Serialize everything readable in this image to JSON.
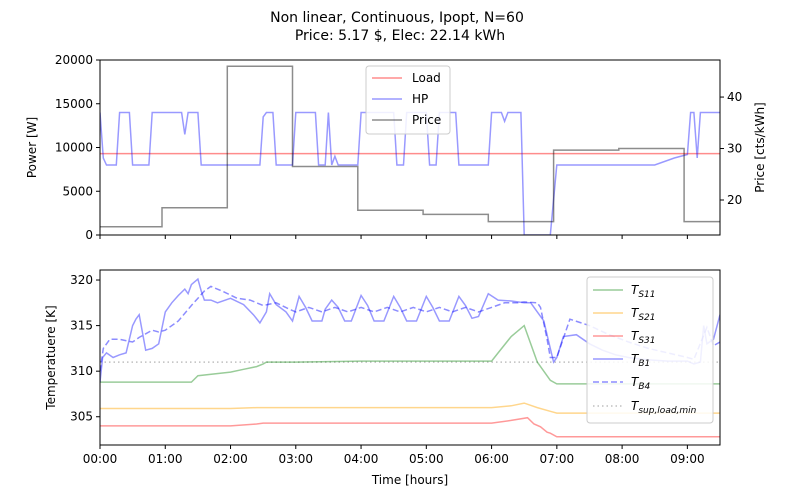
{
  "title_line1": "Non linear, Continuous, Ipopt, N=60",
  "title_line2": "Price: 5.17 $, Elec: 22.14 kWh",
  "colors": {
    "load": "#ff0000",
    "hp": "#0000ff",
    "price": "#000000",
    "ts11": "#008000",
    "ts21": "#ffa500",
    "ts31": "#ff0000",
    "tb1": "#0000ff",
    "tb4": "#0000ff",
    "tsup": "#808080"
  },
  "chart_data": [
    {
      "type": "line",
      "xlabel": "",
      "ylabel": "Power [W]",
      "y2label": "Price [cts/kWh]",
      "xlim": [
        0,
        9.5
      ],
      "ylim": [
        0,
        20000
      ],
      "y2lim": [
        13.2,
        47.2
      ],
      "yticks": [
        "0",
        "5000",
        "10000",
        "15000",
        "20000"
      ],
      "y2ticks": [
        "20",
        "30",
        "40"
      ],
      "legend": [
        "Load",
        "HP",
        "Price"
      ],
      "legend_position": "top-center",
      "series": [
        {
          "name": "Load",
          "x": [
            0,
            9.5
          ],
          "values": [
            9300,
            9300
          ]
        },
        {
          "name": "HP",
          "x": [
            0,
            0.05,
            0.1,
            0.25,
            0.3,
            0.45,
            0.5,
            0.75,
            0.8,
            1.25,
            1.3,
            1.35,
            1.4,
            1.5,
            1.55,
            1.95,
            2.0,
            2.45,
            2.5,
            2.55,
            2.65,
            2.7,
            2.95,
            3.0,
            3.3,
            3.35,
            3.45,
            3.5,
            3.55,
            3.6,
            3.65,
            3.75,
            3.8,
            3.95,
            4.0,
            4.5,
            4.55,
            4.65,
            4.7,
            5.0,
            5.05,
            5.15,
            5.2,
            5.45,
            5.5,
            5.95,
            6.0,
            6.15,
            6.2,
            6.25,
            6.3,
            6.45,
            6.5,
            6.85,
            6.9,
            7.0,
            7.5,
            8.0,
            8.5,
            8.8,
            9.0,
            9.05,
            9.1,
            9.15,
            9.2,
            9.3,
            9.35,
            9.5
          ],
          "values": [
            14000,
            8800,
            8000,
            8000,
            14000,
            14000,
            8000,
            8000,
            14000,
            14000,
            11500,
            14000,
            14000,
            14000,
            8000,
            8000,
            8000,
            8000,
            13500,
            14000,
            14000,
            8000,
            8000,
            14000,
            14000,
            8000,
            8000,
            14000,
            8000,
            9000,
            8000,
            8000,
            8000,
            8000,
            14000,
            14000,
            8000,
            8000,
            14000,
            14000,
            8000,
            8000,
            14000,
            14000,
            8000,
            8000,
            14000,
            14000,
            13000,
            14000,
            14000,
            14000,
            0,
            0,
            0,
            8000,
            8000,
            8000,
            8000,
            8800,
            9200,
            14000,
            14000,
            8800,
            14000,
            14000,
            14000,
            14000
          ]
        },
        {
          "name": "Price",
          "x": [
            0,
            0.95,
            0.95,
            1.95,
            1.95,
            2.95,
            2.95,
            3.95,
            3.95,
            4.95,
            4.95,
            5.95,
            5.95,
            6.95,
            6.95,
            7.95,
            7.95,
            8.95,
            8.95,
            9.5
          ],
          "values": [
            14.8,
            14.8,
            18.5,
            18.5,
            46.0,
            46.0,
            26.5,
            26.5,
            18.0,
            18.0,
            17.2,
            17.2,
            15.8,
            15.8,
            29.7,
            29.7,
            30.0,
            30.0,
            15.8,
            15.8
          ]
        }
      ]
    },
    {
      "type": "line",
      "xlabel": "Time [hours]",
      "ylabel": "Temperatuere [K]",
      "xlim": [
        0,
        9.5
      ],
      "ylim": [
        301.9,
        321.1
      ],
      "xticks": [
        "00:00",
        "01:00",
        "02:00",
        "03:00",
        "04:00",
        "05:00",
        "06:00",
        "07:00",
        "08:00",
        "09:00"
      ],
      "yticks": [
        "305",
        "310",
        "315",
        "320"
      ],
      "legend": [
        "T_S11",
        "T_S21",
        "T_S31",
        "T_B1",
        "T_B4",
        "T_sup,load,min"
      ],
      "legend_position": "top-right",
      "series": [
        {
          "name": "T_S11",
          "x": [
            0,
            1.4,
            1.5,
            2.0,
            2.2,
            2.4,
            2.5,
            2.55,
            3.0,
            4.0,
            5.0,
            6.0,
            6.1,
            6.3,
            6.5,
            6.6,
            6.7,
            6.8,
            6.9,
            7.0,
            8.0,
            9.0,
            9.5
          ],
          "values": [
            308.8,
            308.8,
            309.5,
            309.9,
            310.2,
            310.5,
            310.8,
            311.0,
            311.0,
            311.1,
            311.1,
            311.1,
            312.0,
            313.8,
            315.0,
            313.0,
            311.0,
            310.0,
            309.0,
            308.6,
            308.6,
            308.6,
            308.6
          ]
        },
        {
          "name": "T_S21",
          "x": [
            0,
            1.0,
            2.0,
            2.4,
            2.5,
            3.0,
            4.0,
            5.0,
            6.0,
            6.3,
            6.5,
            6.7,
            6.9,
            7.0,
            8.0,
            9.0,
            9.5
          ],
          "values": [
            305.9,
            305.9,
            305.9,
            306.0,
            306.0,
            306.0,
            306.0,
            306.0,
            306.0,
            306.2,
            306.5,
            306.0,
            305.6,
            305.4,
            305.4,
            305.4,
            305.4
          ]
        },
        {
          "name": "T_S31",
          "x": [
            0,
            1.0,
            2.0,
            2.4,
            2.5,
            3.0,
            4.0,
            5.0,
            6.0,
            6.3,
            6.55,
            6.65,
            6.75,
            6.85,
            6.9,
            7.0,
            8.0,
            9.0,
            9.5
          ],
          "values": [
            304.0,
            304.0,
            304.0,
            304.2,
            304.3,
            304.3,
            304.3,
            304.3,
            304.3,
            304.6,
            304.9,
            304.2,
            303.9,
            303.3,
            303.2,
            302.8,
            302.8,
            302.8,
            302.8
          ]
        },
        {
          "name": "T_B1",
          "x": [
            0,
            0.04,
            0.1,
            0.2,
            0.3,
            0.4,
            0.5,
            0.55,
            0.6,
            0.7,
            0.8,
            0.9,
            1.0,
            1.1,
            1.2,
            1.3,
            1.35,
            1.4,
            1.5,
            1.55,
            1.6,
            1.7,
            1.8,
            2.0,
            2.2,
            2.35,
            2.45,
            2.55,
            2.6,
            2.7,
            2.85,
            2.95,
            3.05,
            3.15,
            3.25,
            3.4,
            3.45,
            3.55,
            3.65,
            3.75,
            3.85,
            4.0,
            4.1,
            4.2,
            4.35,
            4.5,
            4.6,
            4.7,
            4.85,
            5.0,
            5.1,
            5.2,
            5.35,
            5.5,
            5.6,
            5.7,
            5.8,
            5.95,
            6.1,
            6.3,
            6.5,
            6.6,
            6.7,
            6.8,
            6.9,
            6.95,
            7.0,
            7.1,
            7.3,
            7.5,
            7.7,
            7.9,
            8.1,
            8.3,
            8.5,
            8.7,
            8.9,
            9.0,
            9.1,
            9.2,
            9.25,
            9.3,
            9.4,
            9.5
          ],
          "values": [
            308.8,
            311.5,
            312.0,
            311.5,
            311.8,
            312.0,
            315.0,
            315.7,
            316.2,
            312.3,
            312.5,
            313.0,
            316.5,
            317.5,
            318.3,
            319.0,
            318.5,
            319.5,
            320.1,
            318.8,
            317.8,
            317.8,
            317.5,
            318.0,
            317.3,
            316.2,
            315.3,
            316.5,
            318.5,
            317.3,
            316.5,
            315.5,
            318.2,
            317.0,
            315.5,
            315.5,
            316.8,
            317.8,
            317.0,
            315.5,
            315.5,
            318.3,
            317.2,
            315.5,
            315.5,
            318.2,
            317.0,
            315.5,
            315.5,
            318.2,
            317.0,
            315.5,
            315.5,
            318.2,
            317.2,
            315.8,
            316.0,
            318.5,
            317.8,
            317.7,
            317.5,
            317.5,
            316.5,
            315.5,
            312.5,
            311.0,
            311.5,
            313.8,
            314.0,
            313.0,
            312.3,
            311.8,
            311.5,
            311.3,
            311.2,
            311.1,
            311.1,
            311.1,
            310.8,
            311.0,
            315.0,
            313.0,
            313.5,
            316.2
          ]
        },
        {
          "name": "T_B4",
          "x": [
            0,
            0.05,
            0.15,
            0.3,
            0.5,
            0.6,
            0.8,
            0.9,
            1.0,
            1.2,
            1.4,
            1.6,
            1.7,
            1.9,
            2.1,
            2.3,
            2.5,
            2.7,
            2.9,
            3.0,
            3.2,
            3.4,
            3.6,
            3.8,
            4.0,
            4.2,
            4.4,
            4.6,
            4.8,
            5.0,
            5.2,
            5.4,
            5.6,
            5.8,
            6.0,
            6.2,
            6.4,
            6.5,
            6.7,
            6.75,
            6.85,
            6.9,
            7.0,
            7.2,
            7.5,
            7.8,
            8.1,
            8.4,
            8.7,
            9.0,
            9.1,
            9.3,
            9.4,
            9.5
          ],
          "values": [
            310.0,
            312.5,
            313.5,
            313.5,
            313.2,
            313.7,
            314.5,
            314.3,
            314.5,
            315.5,
            317.2,
            318.8,
            319.3,
            318.7,
            318.0,
            317.8,
            317.2,
            317.5,
            316.8,
            316.5,
            317.0,
            316.5,
            317.0,
            316.5,
            317.0,
            316.5,
            317.0,
            316.5,
            317.0,
            316.5,
            317.0,
            316.5,
            317.0,
            316.5,
            317.0,
            317.5,
            317.5,
            317.6,
            317.5,
            317.0,
            313.5,
            311.5,
            311.5,
            315.7,
            315.0,
            314.0,
            313.2,
            312.5,
            312.0,
            311.5,
            311.3,
            314.8,
            312.8,
            313.2
          ]
        },
        {
          "name": "T_sup,load,min",
          "x": [
            0,
            9.5
          ],
          "values": [
            311.0,
            311.0
          ]
        }
      ]
    }
  ]
}
